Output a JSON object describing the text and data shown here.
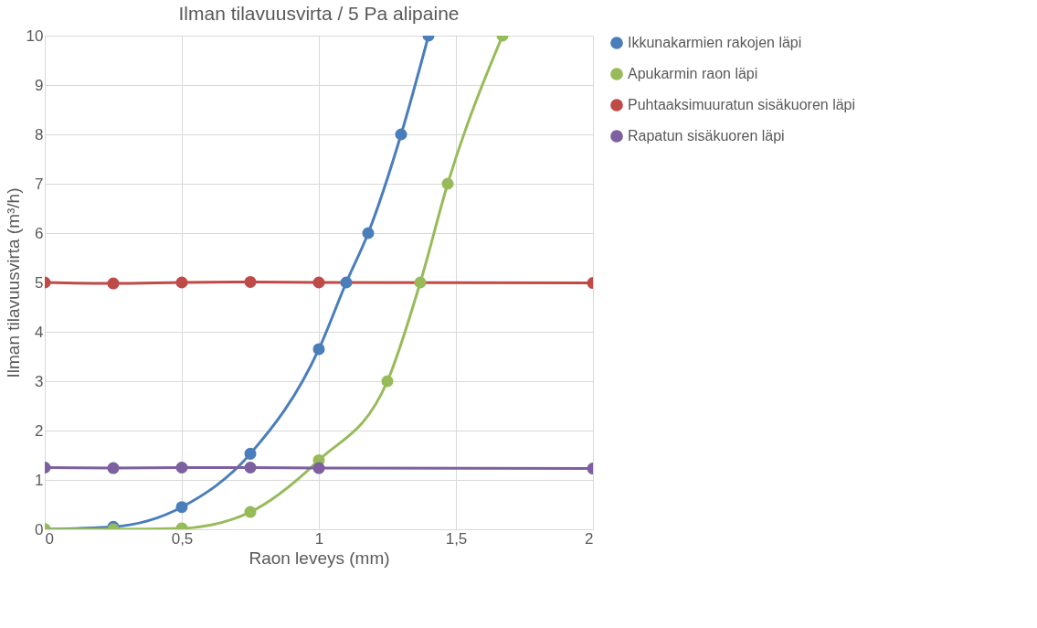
{
  "chart_data": {
    "type": "line",
    "title": "Ilman tilavuusvirta / 5 Pa alipaine",
    "xlabel": "Raon leveys (mm)",
    "ylabel": "Ilman tilavuusvirta (m³/h)",
    "xlim": [
      0,
      2
    ],
    "xticks": [
      0,
      {
        "value": 0.5,
        "label": "0,5"
      },
      1,
      {
        "value": 1.5,
        "label": "1,5"
      },
      2
    ],
    "ylim": [
      0,
      10
    ],
    "yticks": [
      0,
      1,
      2,
      3,
      4,
      5,
      6,
      7,
      8,
      9,
      10
    ],
    "grid": true,
    "legend": "right",
    "marker": "circle",
    "line_style": "solid",
    "series": [
      {
        "name": "Ikkunakarmien rakojen läpi",
        "color": "#4a7ebb",
        "x": [
          0,
          0.25,
          0.5,
          0.75,
          1,
          1.1,
          1.18,
          1.3,
          1.4
        ],
        "values": [
          0,
          0.05,
          0.45,
          1.53,
          3.65,
          5,
          6,
          8,
          10
        ]
      },
      {
        "name": "Apukarmin raon läpi",
        "color": "#98bb59",
        "x": [
          0,
          0.25,
          0.5,
          0.75,
          1,
          1.25,
          1.37,
          1.47,
          1.67
        ],
        "values": [
          0,
          0,
          0.02,
          0.35,
          1.4,
          3,
          5,
          7,
          10
        ]
      },
      {
        "name": "Puhtaaksimuuratun sisäkuoren läpi",
        "color": "#be4b48",
        "x": [
          0,
          0.25,
          0.5,
          0.75,
          1,
          2
        ],
        "values": [
          5,
          4.98,
          5,
          5.01,
          5,
          4.99
        ]
      },
      {
        "name": "Rapatun sisäkuoren läpi",
        "color": "#7d60a0",
        "x": [
          0,
          0.25,
          0.5,
          0.75,
          1,
          2
        ],
        "values": [
          1.25,
          1.24,
          1.25,
          1.25,
          1.24,
          1.23
        ]
      }
    ]
  }
}
